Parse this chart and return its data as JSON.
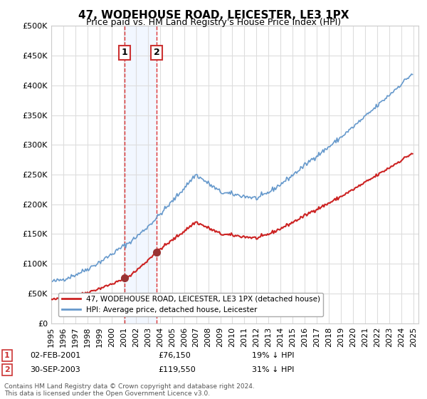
{
  "title": "47, WODEHOUSE ROAD, LEICESTER, LE3 1PX",
  "subtitle": "Price paid vs. HM Land Registry's House Price Index (HPI)",
  "legend_line1": "47, WODEHOUSE ROAD, LEICESTER, LE3 1PX (detached house)",
  "legend_line2": "HPI: Average price, detached house, Leicester",
  "annotation1_label": "1",
  "annotation1_date": "02-FEB-2001",
  "annotation1_price": "£76,150",
  "annotation1_hpi": "19% ↓ HPI",
  "annotation2_label": "2",
  "annotation2_date": "30-SEP-2003",
  "annotation2_price": "£119,550",
  "annotation2_hpi": "31% ↓ HPI",
  "footer": "Contains HM Land Registry data © Crown copyright and database right 2024.\nThis data is licensed under the Open Government Licence v3.0.",
  "hpi_color": "#6699cc",
  "price_color": "#cc2222",
  "marker_color": "#993333",
  "annotation_box_color": "#cc3333",
  "vline_color": "#dd3333",
  "shade_color": "#cce0ff",
  "ylim": [
    0,
    500000
  ],
  "yticks": [
    0,
    50000,
    100000,
    150000,
    200000,
    250000,
    300000,
    350000,
    400000,
    450000,
    500000
  ],
  "x_start_year": 1995,
  "x_end_year": 2025
}
